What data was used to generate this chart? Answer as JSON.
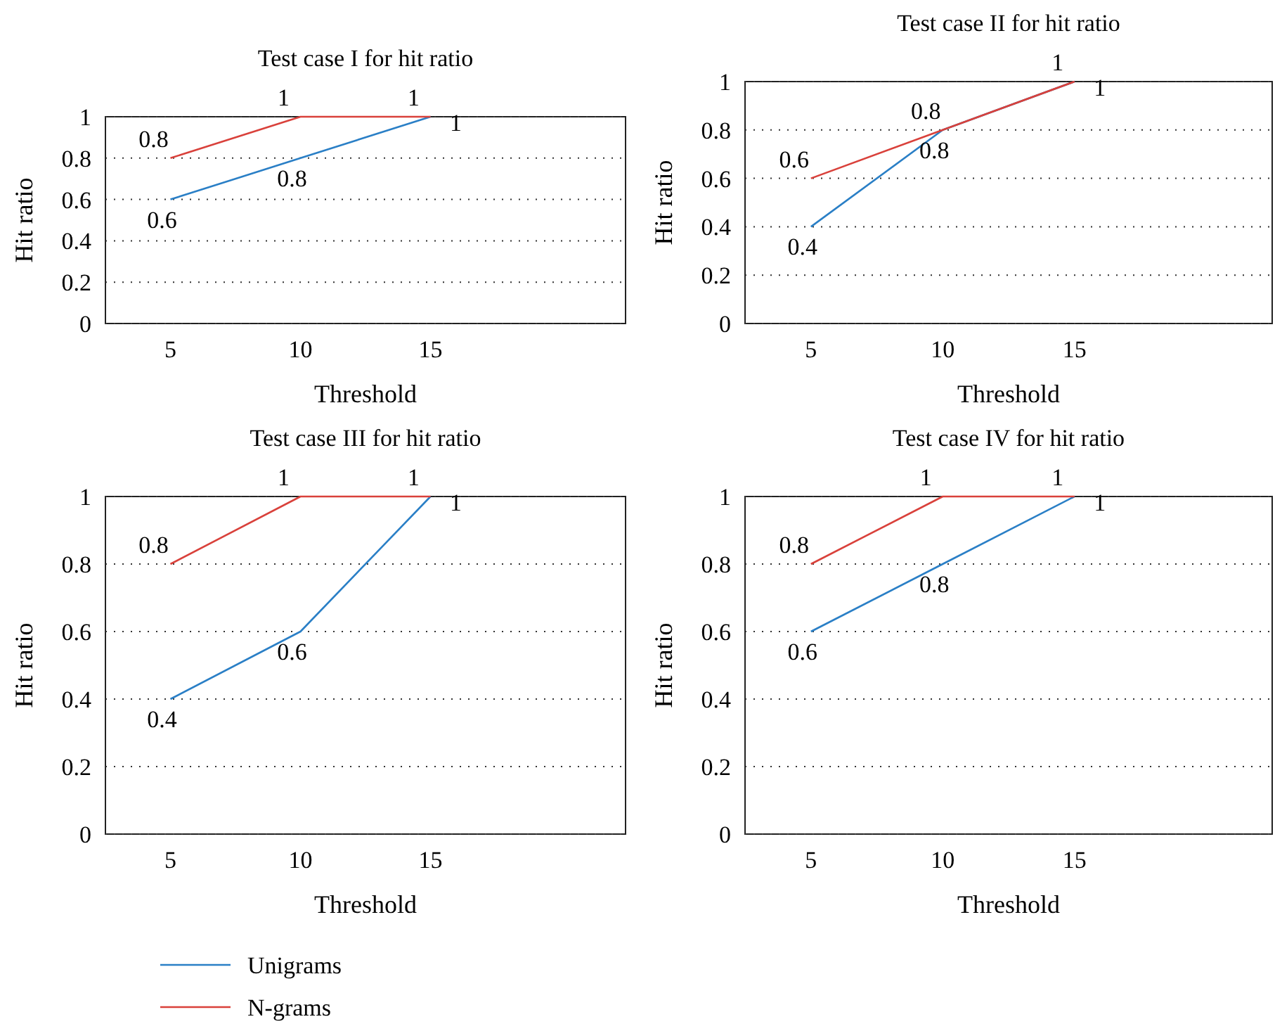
{
  "chart_data": [
    {
      "type": "line",
      "title": "Test case I for hit ratio",
      "xlabel": "Threshold",
      "ylabel": "Hit ratio",
      "categories": [
        "5",
        "10",
        "15",
        null
      ],
      "ylim": [
        0,
        1
      ],
      "yticks": [
        0,
        0.2,
        0.4,
        0.6,
        0.8,
        1
      ],
      "grid": "y",
      "data_labels": true,
      "series": [
        {
          "color": "#2a7fc6",
          "values": [
            0.6,
            0.8,
            1,
            null
          ]
        },
        {
          "color": "#d9413b",
          "values": [
            0.8,
            1,
            1,
            null
          ]
        }
      ]
    },
    {
      "type": "line",
      "title": "Test case II for hit ratio",
      "xlabel": "Threshold",
      "ylabel": "Hit ratio",
      "categories": [
        "5",
        "10",
        "15",
        null
      ],
      "ylim": [
        0,
        1
      ],
      "yticks": [
        0,
        0.2,
        0.4,
        0.6,
        0.8,
        1
      ],
      "grid": "y",
      "data_labels": true,
      "series": [
        {
          "color": "#2a7fc6",
          "values": [
            0.4,
            0.8,
            1,
            null
          ]
        },
        {
          "color": "#d9413b",
          "values": [
            0.6,
            0.8,
            1,
            null
          ]
        }
      ]
    },
    {
      "type": "line",
      "title": "Test case III for hit ratio",
      "xlabel": "Threshold",
      "ylabel": "Hit ratio",
      "categories": [
        "5",
        "10",
        "15",
        null
      ],
      "ylim": [
        0,
        1
      ],
      "yticks": [
        0,
        0.2,
        0.4,
        0.6,
        0.8,
        1
      ],
      "grid": "y",
      "data_labels": true,
      "legend": "bottom",
      "series": [
        {
          "name": "Unigrams",
          "color": "#2a7fc6",
          "values": [
            0.4,
            0.6,
            1,
            null
          ]
        },
        {
          "name": "N-grams",
          "color": "#d9413b",
          "values": [
            0.8,
            1,
            1,
            null
          ]
        }
      ]
    },
    {
      "type": "line",
      "title": "Test case IV for hit ratio",
      "xlabel": "Threshold",
      "ylabel": "Hit ratio",
      "categories": [
        "5",
        "10",
        "15",
        null
      ],
      "ylim": [
        0,
        1
      ],
      "yticks": [
        0,
        0.2,
        0.4,
        0.6,
        0.8,
        1
      ],
      "grid": "y",
      "data_labels": true,
      "series": [
        {
          "color": "#2a7fc6",
          "values": [
            0.6,
            0.8,
            1,
            null
          ]
        },
        {
          "color": "#d9413b",
          "values": [
            0.8,
            1,
            1,
            null
          ]
        }
      ]
    }
  ]
}
